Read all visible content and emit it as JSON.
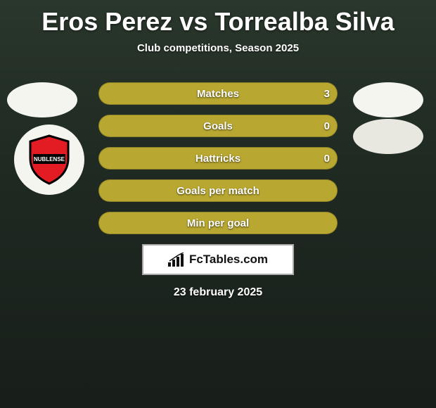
{
  "title": "Eros Perez vs Torrealba Silva",
  "subtitle": "Club competitions, Season 2025",
  "date": "23 february 2025",
  "brand_text": "FcTables.com",
  "club_badge": {
    "label": "NUBLENSE",
    "shield_fill": "#e31b23",
    "shield_stroke": "#000"
  },
  "row_style": {
    "base_bg": "#a89a2c",
    "fill_bg": "#b8a730",
    "label_color": "#ffffff",
    "height": 32,
    "radius": 16
  },
  "rows": [
    {
      "label": "Matches",
      "left_value": "3",
      "fill_pct": 100,
      "show_value": true
    },
    {
      "label": "Goals",
      "left_value": "0",
      "fill_pct": 100,
      "show_value": true
    },
    {
      "label": "Hattricks",
      "left_value": "0",
      "fill_pct": 100,
      "show_value": true
    },
    {
      "label": "Goals per match",
      "left_value": "",
      "fill_pct": 100,
      "show_value": false
    },
    {
      "label": "Min per goal",
      "left_value": "",
      "fill_pct": 100,
      "show_value": false
    }
  ],
  "avatars": {
    "left": [
      {
        "present": true
      }
    ],
    "right": [
      {
        "present": true
      },
      {
        "present": true
      }
    ]
  }
}
